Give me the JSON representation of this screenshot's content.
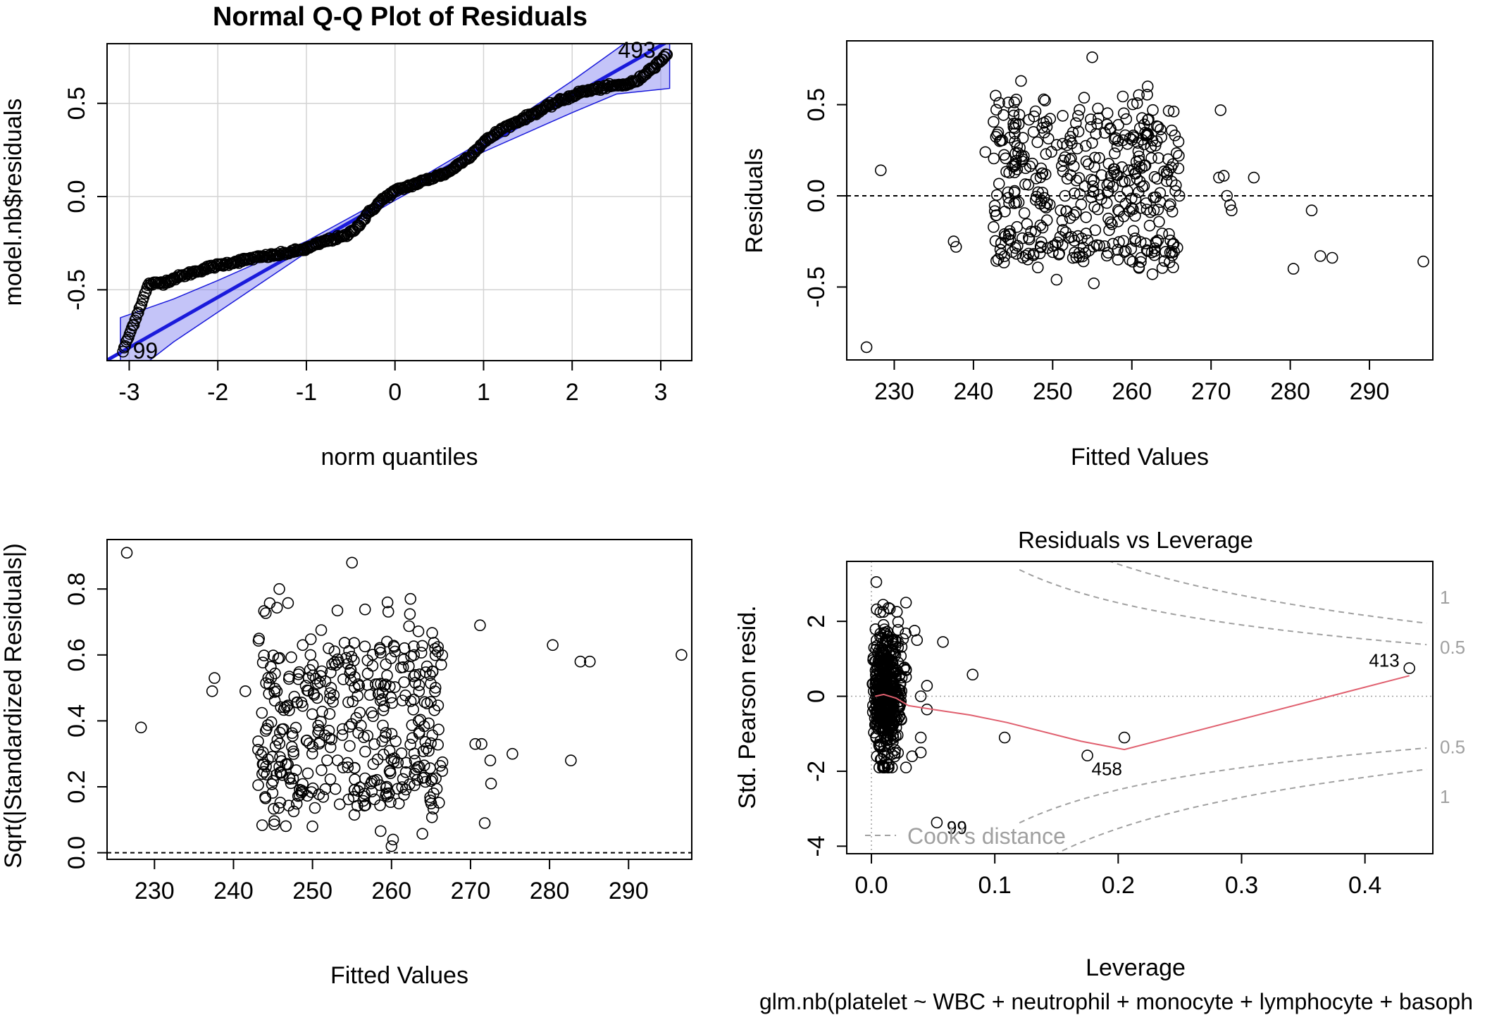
{
  "figure": {
    "qq": {
      "title": "Normal Q-Q Plot of Residuals",
      "xlabel": "norm quantiles",
      "ylabel": "model.nb$residuals"
    },
    "rf": {
      "title": "",
      "xlabel": "Fitted Values",
      "ylabel": "Residuals"
    },
    "sl": {
      "title": "",
      "xlabel": "Fitted Values",
      "ylabel": "Sqrt(|Standardized Residuals|)"
    },
    "rl": {
      "title": "Residuals vs Leverage",
      "xlabel": "Leverage",
      "ylabel": "Std. Pearson resid.",
      "subtitle": "glm.nb(platelet ~ WBC + neutrophil + monocyte + lymphocyte + basoph",
      "cooks_legend": "Cook's distance"
    }
  },
  "colors": {
    "points": "#000000",
    "qq_line": "#1a1adb",
    "qq_band": "#7c7cf0",
    "grid": "#d3d3d3",
    "smoother": "#e0606f",
    "cooks": "#a0a0a0"
  },
  "chart_data": [
    {
      "type": "scatter",
      "title": "Normal Q-Q Plot of Residuals",
      "xlabel": "norm quantiles",
      "ylabel": "model.nb$residuals",
      "xlim": [
        -3.25,
        3.35
      ],
      "ylim": [
        -0.88,
        0.82
      ],
      "x_ticks": [
        -3,
        -2,
        -1,
        0,
        1,
        2,
        3
      ],
      "y_ticks": [
        -0.5,
        0.0,
        0.5
      ],
      "y_tick_labels": [
        "-0.5",
        "0.0",
        "0.5"
      ],
      "grid": true,
      "reference_line": {
        "intercept": 0.0,
        "slope": 0.27
      },
      "confidence_band": [
        [
          -3.1,
          -0.65,
          -1.0
        ],
        [
          -2.5,
          -0.55,
          -0.78
        ],
        [
          -2.0,
          -0.45,
          -0.62
        ],
        [
          -1.0,
          -0.24,
          -0.3
        ],
        [
          0.0,
          0.02,
          -0.02
        ],
        [
          1.0,
          0.3,
          0.24
        ],
        [
          2.0,
          0.62,
          0.45
        ],
        [
          2.5,
          0.79,
          0.55
        ],
        [
          3.1,
          1.0,
          0.58
        ]
      ],
      "labeled_points": [
        {
          "x": -3.07,
          "y": -0.83,
          "label": "99"
        },
        {
          "x": 3.07,
          "y": 0.76,
          "label": "493"
        }
      ],
      "anchor_points": [
        [
          -3.07,
          -0.83
        ],
        [
          -2.78,
          -0.47
        ],
        [
          -2.6,
          -0.46
        ],
        [
          -2.5,
          -0.44
        ],
        [
          -2.3,
          -0.41
        ],
        [
          -2.1,
          -0.38
        ],
        [
          -1.9,
          -0.36
        ],
        [
          -1.6,
          -0.33
        ],
        [
          -1.3,
          -0.31
        ],
        [
          -1.0,
          -0.28
        ],
        [
          -0.8,
          -0.24
        ],
        [
          -0.55,
          -0.21
        ],
        [
          -0.4,
          -0.15
        ],
        [
          -0.3,
          -0.09
        ],
        [
          -0.15,
          -0.02
        ],
        [
          0.0,
          0.03
        ],
        [
          0.3,
          0.08
        ],
        [
          0.6,
          0.13
        ],
        [
          0.85,
          0.22
        ],
        [
          1.0,
          0.29
        ],
        [
          1.2,
          0.36
        ],
        [
          1.5,
          0.43
        ],
        [
          1.8,
          0.5
        ],
        [
          2.1,
          0.56
        ],
        [
          2.4,
          0.59
        ],
        [
          2.6,
          0.6
        ],
        [
          2.73,
          0.62
        ],
        [
          3.07,
          0.76
        ]
      ]
    },
    {
      "type": "scatter",
      "title": "",
      "xlabel": "Fitted Values",
      "ylabel": "Residuals",
      "xlim": [
        224,
        298
      ],
      "ylim": [
        -0.9,
        0.85
      ],
      "x_ticks": [
        230,
        240,
        250,
        260,
        270,
        280,
        290
      ],
      "y_ticks": [
        -0.5,
        0.0,
        0.5
      ],
      "y_tick_labels": [
        "-0.5",
        "0.0",
        "0.5"
      ],
      "hline": 0,
      "points": [
        [
          226.5,
          -0.83
        ],
        [
          228.3,
          0.14
        ],
        [
          237.5,
          -0.25
        ],
        [
          237.8,
          -0.28
        ],
        [
          241.5,
          0.24
        ],
        [
          255,
          0.76
        ],
        [
          246,
          0.63
        ],
        [
          262,
          0.6
        ],
        [
          271.2,
          0.47
        ],
        [
          271,
          0.1
        ],
        [
          271.6,
          0.11
        ],
        [
          275.4,
          0.1
        ],
        [
          272,
          0.0
        ],
        [
          272.4,
          -0.05
        ],
        [
          272.6,
          -0.08
        ],
        [
          282.7,
          -0.08
        ],
        [
          283.8,
          -0.33
        ],
        [
          285.3,
          -0.34
        ],
        [
          280.4,
          -0.4
        ],
        [
          296.8,
          -0.36
        ],
        [
          250.5,
          -0.46
        ],
        [
          255.2,
          -0.48
        ],
        [
          262.6,
          -0.43
        ],
        [
          266,
          0.0
        ]
      ],
      "cloud": {
        "x_range": [
          242.5,
          266
        ],
        "y_range": [
          -0.4,
          0.56
        ]
      }
    },
    {
      "type": "scatter",
      "title": "",
      "xlabel": "Fitted Values",
      "ylabel": "Sqrt(|Standardized Residuals|)",
      "xlim": [
        224,
        298
      ],
      "ylim": [
        -0.02,
        0.95
      ],
      "x_ticks": [
        230,
        240,
        250,
        260,
        270,
        280,
        290
      ],
      "y_ticks": [
        0.0,
        0.2,
        0.4,
        0.6,
        0.8
      ],
      "y_tick_labels": [
        "0.0",
        "0.2",
        "0.4",
        "0.6",
        "0.8"
      ],
      "hline": 0,
      "points": [
        [
          226.5,
          0.91
        ],
        [
          228.3,
          0.38
        ],
        [
          237.3,
          0.49
        ],
        [
          237.6,
          0.53
        ],
        [
          241.5,
          0.49
        ],
        [
          255,
          0.88
        ],
        [
          245.8,
          0.8
        ],
        [
          262.4,
          0.77
        ],
        [
          271.2,
          0.69
        ],
        [
          270.6,
          0.33
        ],
        [
          271.4,
          0.33
        ],
        [
          275.3,
          0.3
        ],
        [
          272.5,
          0.28
        ],
        [
          272.6,
          0.21
        ],
        [
          271.8,
          0.09
        ],
        [
          280.4,
          0.63
        ],
        [
          283.9,
          0.58
        ],
        [
          285.1,
          0.58
        ],
        [
          282.7,
          0.28
        ],
        [
          296.7,
          0.6
        ],
        [
          260,
          0.02
        ],
        [
          260.2,
          0.04
        ]
      ],
      "cloud": {
        "x_range": [
          243,
          266.5
        ],
        "y_range": [
          0.05,
          0.76
        ]
      }
    },
    {
      "type": "scatter",
      "title": "Residuals vs Leverage",
      "subtitle": "glm.nb(platelet ~ WBC + neutrophil + monocyte + lymphocyte + basoph",
      "xlabel": "Leverage",
      "ylabel": "Std. Pearson resid.",
      "xlim": [
        -0.02,
        0.455
      ],
      "ylim": [
        -4.2,
        3.6
      ],
      "x_ticks": [
        0.0,
        0.1,
        0.2,
        0.3,
        0.4
      ],
      "x_tick_labels": [
        "0.0",
        "0.1",
        "0.2",
        "0.3",
        "0.4"
      ],
      "y_ticks": [
        -4,
        -2,
        0,
        2
      ],
      "points": [
        [
          0.004,
          3.05
        ],
        [
          0.035,
          1.75
        ],
        [
          0.037,
          1.5
        ],
        [
          0.058,
          1.45
        ],
        [
          0.082,
          0.58
        ],
        [
          0.045,
          0.28
        ],
        [
          0.04,
          0.0
        ],
        [
          0.045,
          -0.35
        ],
        [
          0.04,
          -1.1
        ],
        [
          0.04,
          -1.5
        ],
        [
          0.033,
          -1.6
        ],
        [
          0.108,
          -1.1
        ],
        [
          0.205,
          -1.1
        ],
        [
          0.175,
          -1.58
        ],
        [
          0.053,
          -3.37
        ],
        [
          0.436,
          0.75
        ]
      ],
      "cloud": {
        "x_range": [
          0.0,
          0.028
        ],
        "y_range": [
          -1.9,
          2.5
        ]
      },
      "labeled_points": [
        {
          "x": 0.436,
          "y": 0.75,
          "label": "413"
        },
        {
          "x": 0.175,
          "y": -1.58,
          "label": "458"
        },
        {
          "x": 0.053,
          "y": -3.37,
          "label": "99"
        }
      ],
      "smoother": [
        [
          0.003,
          0.0
        ],
        [
          0.01,
          0.05
        ],
        [
          0.02,
          -0.05
        ],
        [
          0.03,
          -0.25
        ],
        [
          0.05,
          -0.35
        ],
        [
          0.08,
          -0.5
        ],
        [
          0.11,
          -0.7
        ],
        [
          0.17,
          -1.2
        ],
        [
          0.205,
          -1.42
        ],
        [
          0.436,
          0.55
        ]
      ],
      "cooks_contours": [
        {
          "level": "0.5",
          "label": "0.5"
        },
        {
          "level": "1",
          "label": "1"
        }
      ],
      "cooks_legend": "Cook's distance"
    }
  ]
}
